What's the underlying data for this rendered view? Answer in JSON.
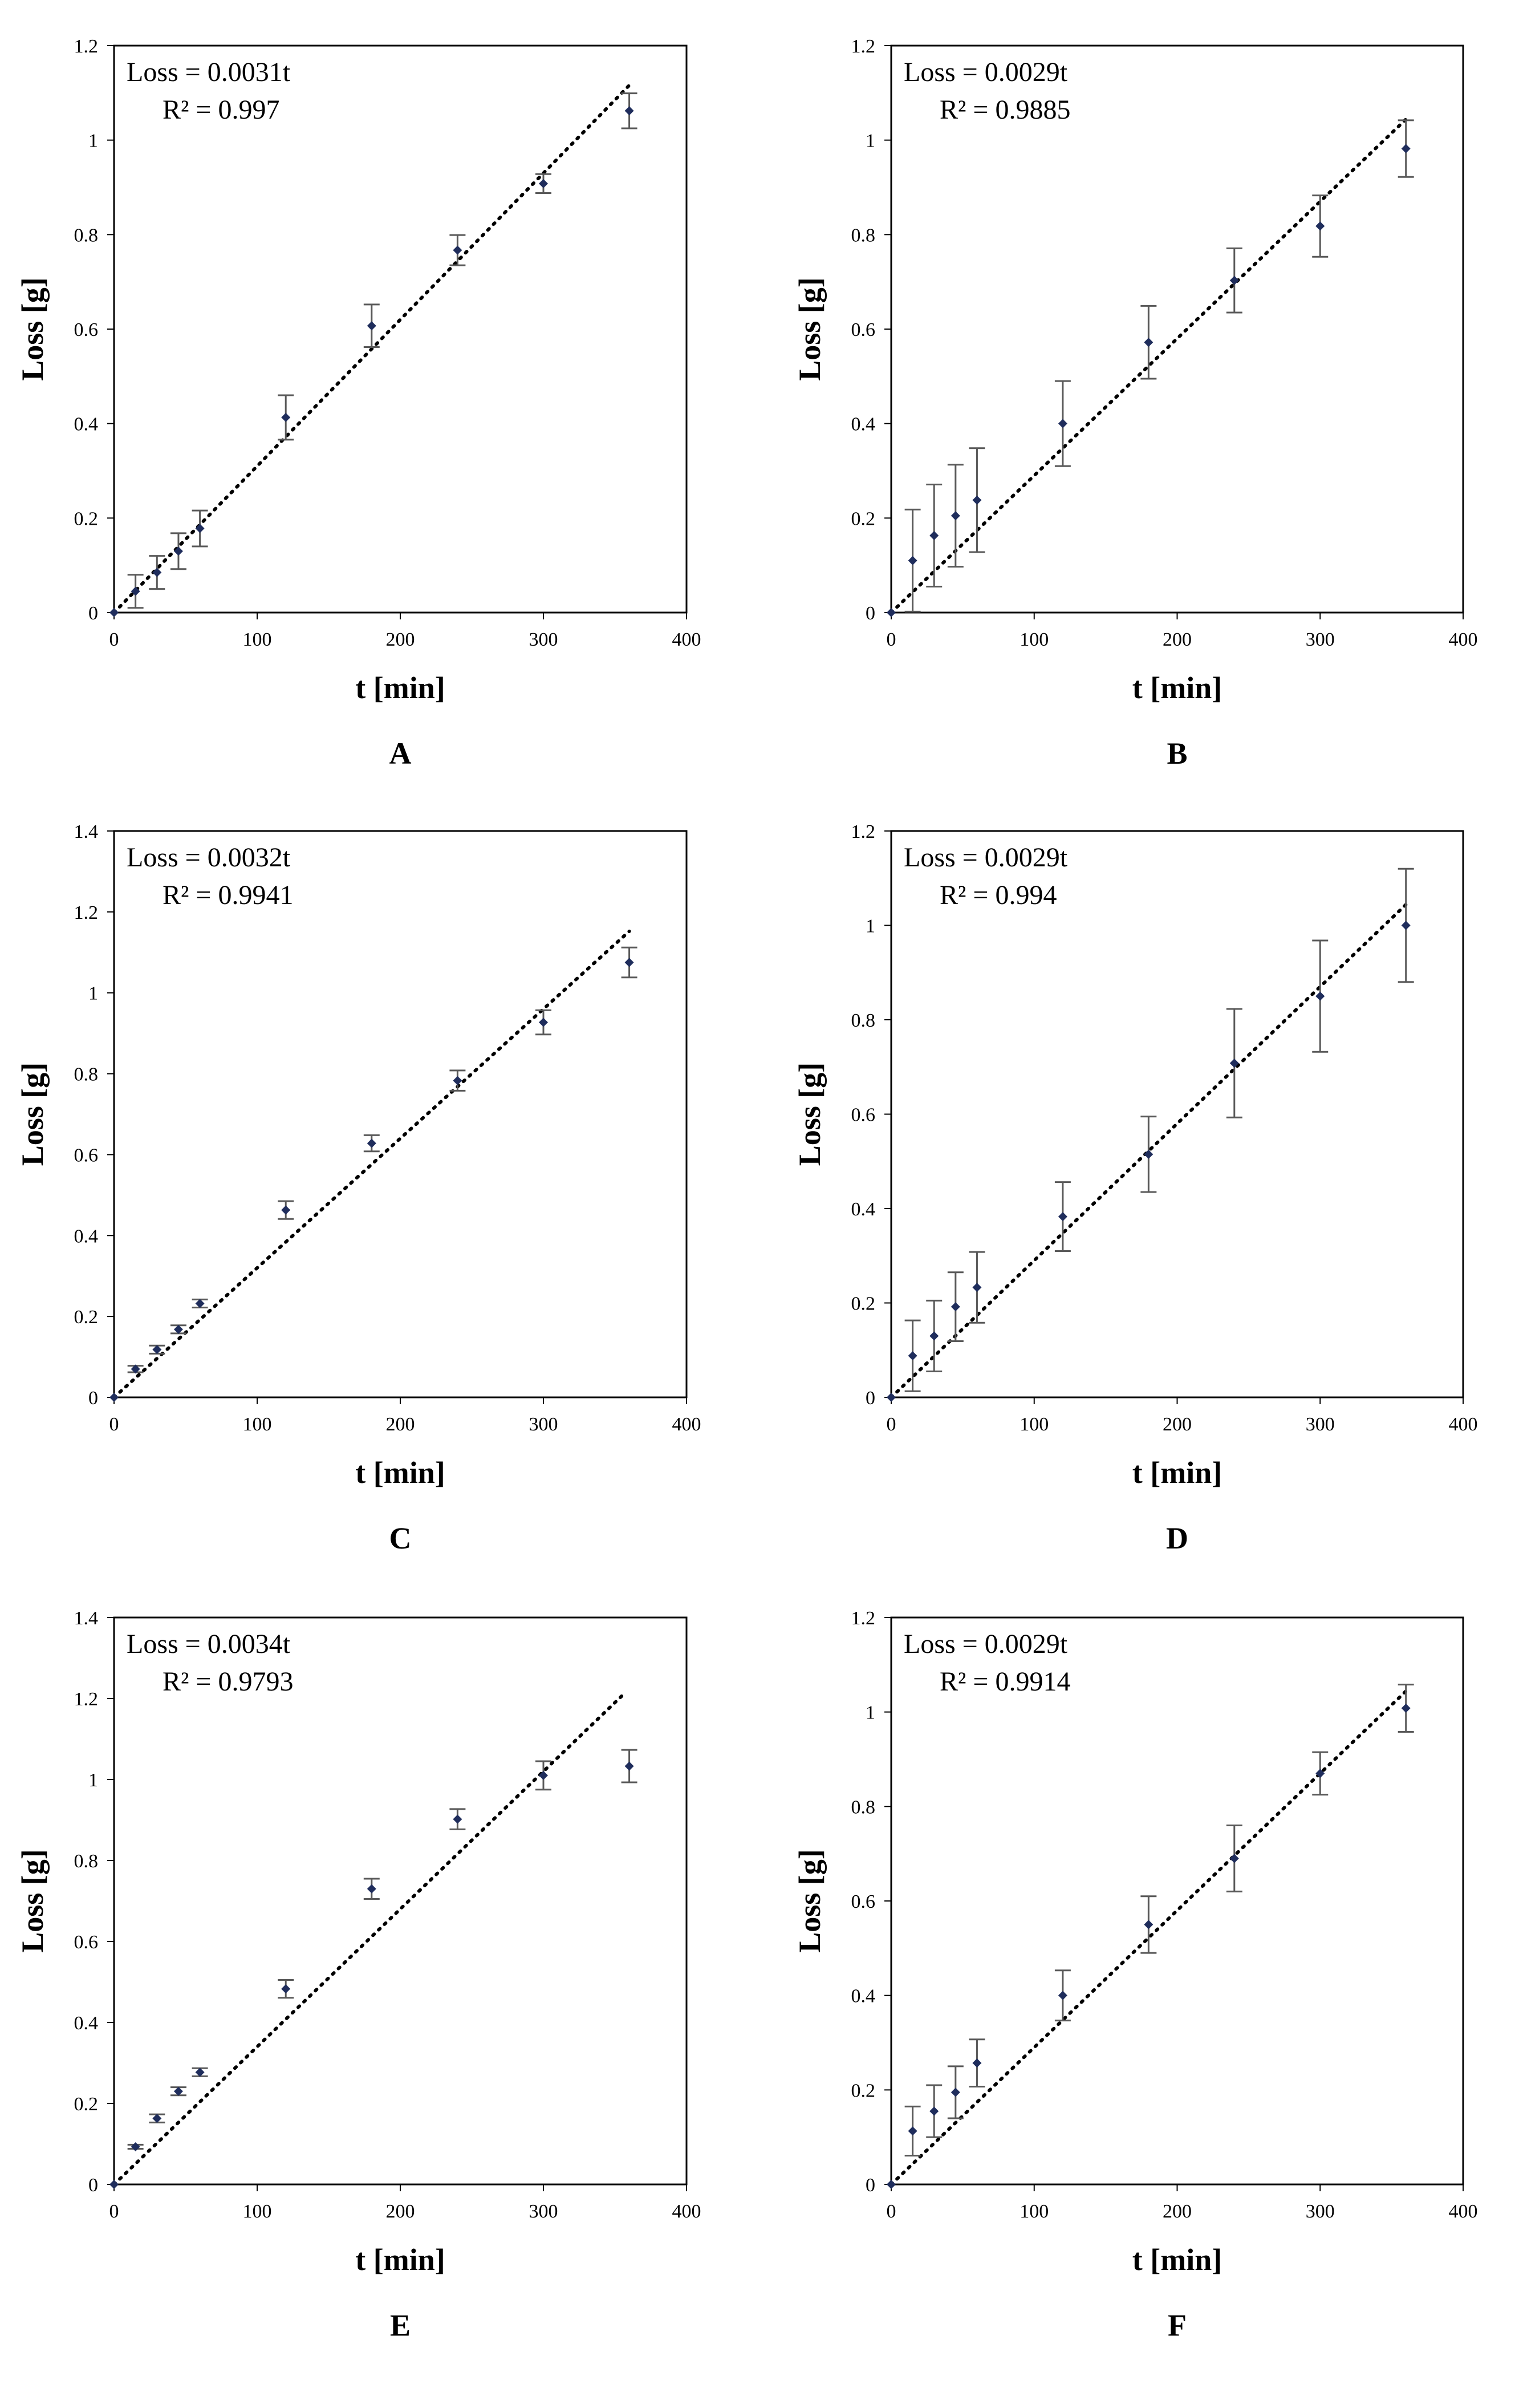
{
  "chart_data": [
    {
      "type": "scatter",
      "panel_label": "A",
      "xlabel": "t [min]",
      "ylabel": "Loss [g]",
      "xlim": [
        0,
        400
      ],
      "ylim": [
        0,
        1.2
      ],
      "xticks": [
        0,
        100,
        200,
        300,
        400
      ],
      "yticks": [
        0,
        0.2,
        0.4,
        0.6,
        0.8,
        1,
        1.2
      ],
      "equation": "Loss = 0.0031t",
      "r2_label": "R² = 0.997",
      "slope": 0.0031,
      "fit_x_range": [
        0,
        360
      ],
      "x": [
        0,
        15,
        30,
        45,
        60,
        120,
        180,
        240,
        300,
        360
      ],
      "y": [
        0,
        0.045,
        0.085,
        0.13,
        0.178,
        0.413,
        0.607,
        0.767,
        0.908,
        1.062
      ],
      "err": [
        0,
        0.035,
        0.035,
        0.038,
        0.038,
        0.047,
        0.045,
        0.032,
        0.02,
        0.037
      ]
    },
    {
      "type": "scatter",
      "panel_label": "B",
      "xlabel": "t [min]",
      "ylabel": "Loss [g]",
      "xlim": [
        0,
        400
      ],
      "ylim": [
        0,
        1.2
      ],
      "xticks": [
        0,
        100,
        200,
        300,
        400
      ],
      "yticks": [
        0,
        0.2,
        0.4,
        0.6,
        0.8,
        1,
        1.2
      ],
      "equation": "Loss = 0.0029t",
      "r2_label": "R² = 0.9885",
      "slope": 0.0029,
      "fit_x_range": [
        0,
        360
      ],
      "x": [
        0,
        15,
        30,
        45,
        60,
        120,
        180,
        240,
        300,
        360
      ],
      "y": [
        0,
        0.11,
        0.163,
        0.205,
        0.238,
        0.4,
        0.572,
        0.703,
        0.818,
        0.982
      ],
      "err": [
        0,
        0.108,
        0.108,
        0.108,
        0.11,
        0.09,
        0.077,
        0.068,
        0.065,
        0.06
      ]
    },
    {
      "type": "scatter",
      "panel_label": "C",
      "xlabel": "t [min]",
      "ylabel": "Loss [g]",
      "xlim": [
        0,
        400
      ],
      "ylim": [
        0,
        1.4
      ],
      "xticks": [
        0,
        100,
        200,
        300,
        400
      ],
      "yticks": [
        0,
        0.2,
        0.4,
        0.6,
        0.8,
        1,
        1.2,
        1.4
      ],
      "equation": "Loss = 0.0032t",
      "r2_label": "R² = 0.9941",
      "slope": 0.0032,
      "fit_x_range": [
        0,
        360
      ],
      "x": [
        0,
        15,
        30,
        45,
        60,
        120,
        180,
        240,
        300,
        360
      ],
      "y": [
        0,
        0.07,
        0.118,
        0.168,
        0.232,
        0.463,
        0.628,
        0.783,
        0.927,
        1.075
      ],
      "err": [
        0,
        0.008,
        0.01,
        0.01,
        0.01,
        0.022,
        0.02,
        0.025,
        0.03,
        0.037
      ]
    },
    {
      "type": "scatter",
      "panel_label": "D",
      "xlabel": "t [min]",
      "ylabel": "Loss [g]",
      "xlim": [
        0,
        400
      ],
      "ylim": [
        0,
        1.2
      ],
      "xticks": [
        0,
        100,
        200,
        300,
        400
      ],
      "yticks": [
        0,
        0.2,
        0.4,
        0.6,
        0.8,
        1,
        1.2
      ],
      "equation": "Loss = 0.0029t",
      "r2_label": "R² = 0.994",
      "slope": 0.0029,
      "fit_x_range": [
        0,
        360
      ],
      "x": [
        0,
        15,
        30,
        45,
        60,
        120,
        180,
        240,
        300,
        360
      ],
      "y": [
        0,
        0.088,
        0.13,
        0.192,
        0.233,
        0.383,
        0.515,
        0.708,
        0.85,
        1.0
      ],
      "err": [
        0,
        0.075,
        0.075,
        0.073,
        0.075,
        0.073,
        0.08,
        0.115,
        0.118,
        0.12
      ]
    },
    {
      "type": "scatter",
      "panel_label": "E",
      "xlabel": "t [min]",
      "ylabel": "Loss [g]",
      "xlim": [
        0,
        400
      ],
      "ylim": [
        0,
        1.4
      ],
      "xticks": [
        0,
        100,
        200,
        300,
        400
      ],
      "yticks": [
        0,
        0.2,
        0.4,
        0.6,
        0.8,
        1,
        1.2,
        1.4
      ],
      "equation": "Loss = 0.0034t",
      "r2_label": "R² = 0.9793",
      "slope": 0.0034,
      "fit_x_range": [
        0,
        355
      ],
      "x": [
        0,
        15,
        30,
        45,
        60,
        120,
        180,
        240,
        300,
        360
      ],
      "y": [
        0,
        0.093,
        0.163,
        0.23,
        0.277,
        0.483,
        0.73,
        0.902,
        1.01,
        1.033
      ],
      "err": [
        0,
        0.005,
        0.01,
        0.01,
        0.01,
        0.022,
        0.025,
        0.025,
        0.035,
        0.04
      ]
    },
    {
      "type": "scatter",
      "panel_label": "F",
      "xlabel": "t [min]",
      "ylabel": "Loss [g]",
      "xlim": [
        0,
        400
      ],
      "ylim": [
        0,
        1.2
      ],
      "xticks": [
        0,
        100,
        200,
        300,
        400
      ],
      "yticks": [
        0,
        0.2,
        0.4,
        0.6,
        0.8,
        1,
        1.2
      ],
      "equation": "Loss = 0.0029t",
      "r2_label": "R² = 0.9914",
      "slope": 0.0029,
      "fit_x_range": [
        0,
        360
      ],
      "x": [
        0,
        15,
        30,
        45,
        60,
        120,
        180,
        240,
        300,
        360
      ],
      "y": [
        0,
        0.113,
        0.155,
        0.195,
        0.257,
        0.4,
        0.55,
        0.69,
        0.87,
        1.008
      ],
      "err": [
        0,
        0.052,
        0.055,
        0.055,
        0.05,
        0.053,
        0.06,
        0.07,
        0.045,
        0.05
      ]
    }
  ],
  "style": {
    "marker_color": "#1f2d5c",
    "errorbar_color": "#595959",
    "fit_color": "#000000"
  }
}
